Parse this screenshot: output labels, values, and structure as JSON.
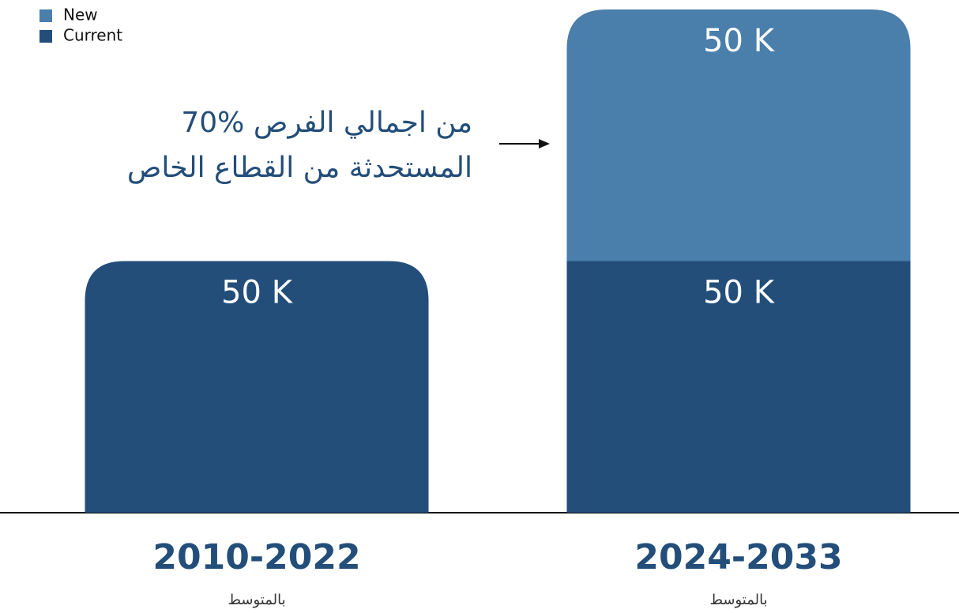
{
  "chart_data": {
    "type": "stacked_bar",
    "categories": [
      "2010-2022",
      "2024-2033"
    ],
    "category_sublabels": [
      "بالمتوسط",
      "بالمتوسط"
    ],
    "series": [
      {
        "name": "Current",
        "color": "#234e7a",
        "values": [
          50,
          50
        ],
        "value_labels": [
          "50 K",
          "50 K"
        ]
      },
      {
        "name": "New",
        "color": "#4a7eab",
        "values": [
          null,
          50
        ],
        "value_labels": [
          null,
          "50 K"
        ]
      }
    ],
    "annotation": [
      "70% من اجمالي الفرص",
      "المستحدثة من القطاع الخاص"
    ],
    "legend": "top-left"
  }
}
